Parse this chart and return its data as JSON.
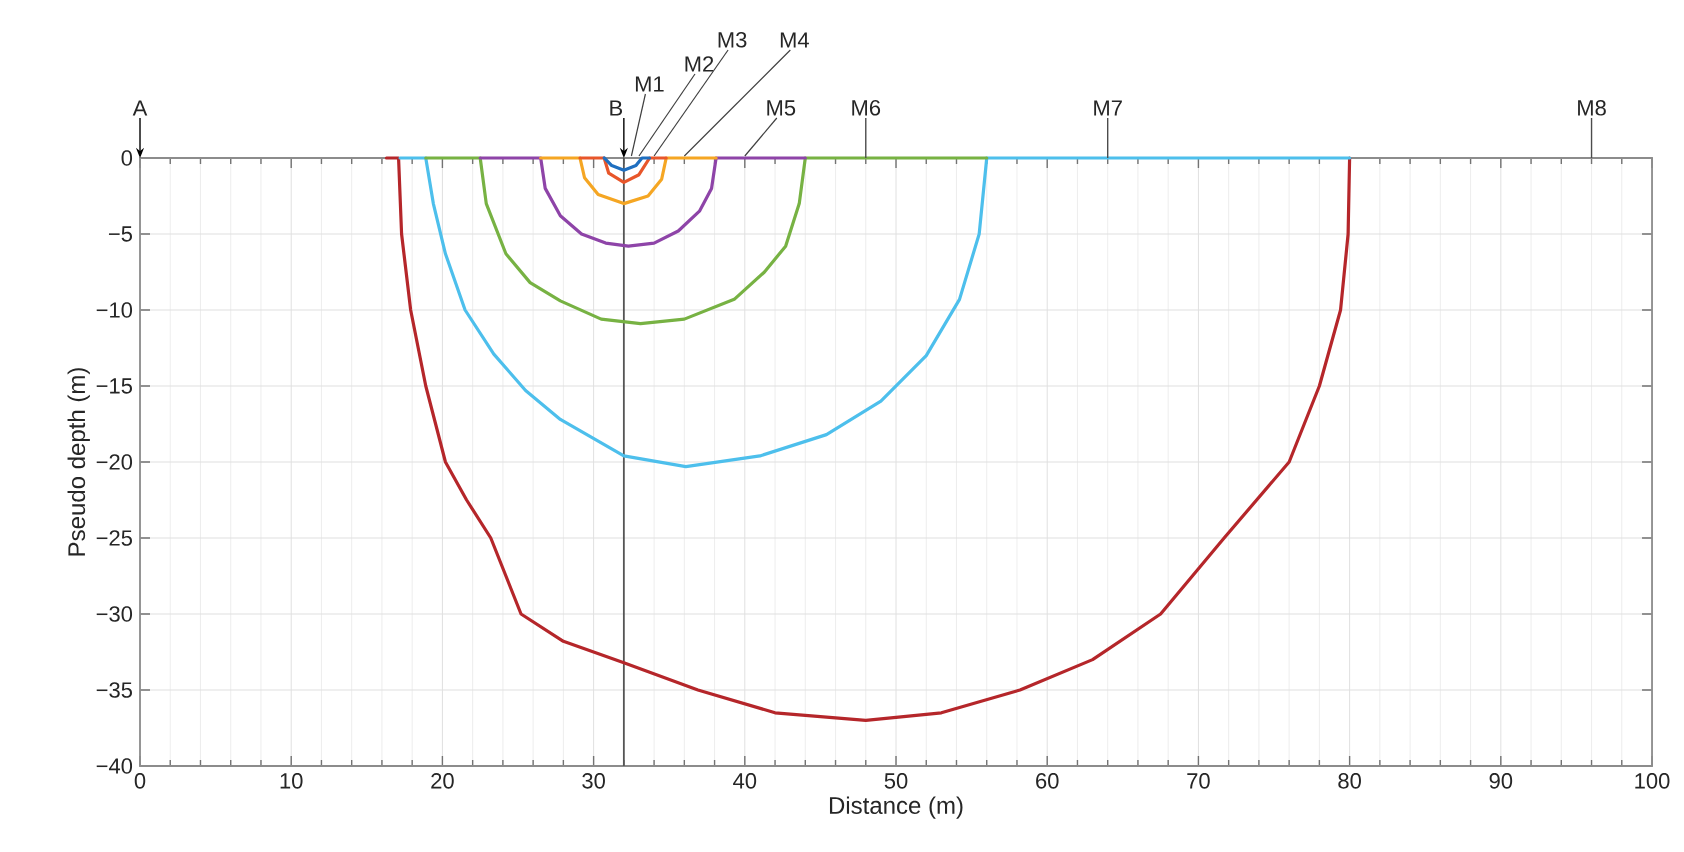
{
  "chart_data": {
    "type": "line",
    "xlabel": "Distance (m)",
    "ylabel": "Pseudo depth (m)",
    "xlim": [
      0,
      100
    ],
    "ylim": [
      -40,
      0
    ],
    "xticks": [
      0,
      10,
      20,
      30,
      40,
      50,
      60,
      70,
      80,
      90,
      100
    ],
    "yticks": [
      {
        "value": 0,
        "label": "0"
      },
      {
        "value": -5,
        "label": "−5"
      },
      {
        "value": -10,
        "label": "−10"
      },
      {
        "value": -15,
        "label": "−15"
      },
      {
        "value": -20,
        "label": "−20"
      },
      {
        "value": -25,
        "label": "−25"
      },
      {
        "value": -30,
        "label": "−30"
      },
      {
        "value": -35,
        "label": "−35"
      },
      {
        "value": -40,
        "label": "−40"
      }
    ],
    "grid": true,
    "marker": "none",
    "line_style": "solid",
    "ref_lines": [
      {
        "axis": "x",
        "value": 32,
        "color": "#555555"
      }
    ],
    "annotations": [
      "A",
      {
        "text": "B",
        "x": 32,
        "y": 0
      },
      {
        "text": "M1",
        "x": 32.5,
        "y": 0
      },
      {
        "text": "M2",
        "x": 33,
        "y": 0
      },
      {
        "text": "M3",
        "x": 34,
        "y": 0
      },
      {
        "text": "M4",
        "x": 36,
        "y": 0
      },
      {
        "text": "M5",
        "x": 40,
        "y": 0
      },
      {
        "text": "M6",
        "x": 48,
        "y": 0
      },
      {
        "text": "M7",
        "x": 64,
        "y": 0
      },
      "M8"
    ],
    "series": [
      {
        "color": "#b5262a",
        "x": [
          16.3,
          17.1,
          17.3,
          17.9,
          18.9,
          20.2,
          21.6,
          23.2,
          25.2,
          28,
          32,
          36.9,
          42,
          48,
          53,
          58.2,
          63,
          67.5,
          71.7,
          76,
          78,
          79.4,
          79.9,
          80
        ],
        "values": [
          0,
          0,
          -5,
          -10,
          -15,
          -20,
          -22.5,
          -25,
          -30,
          -31.8,
          -33.2,
          -35,
          -36.5,
          -37,
          -36.5,
          -35,
          -33,
          -30,
          -25,
          -20,
          -15,
          -10,
          -5,
          0
        ]
      },
      {
        "color": "#4dbfec",
        "x": [
          17.2,
          18.9,
          19.4,
          20.2,
          21.5,
          23.4,
          25.5,
          27.8,
          32,
          36.1,
          41,
          45.4,
          49,
          52,
          54.2,
          55.5,
          56,
          80
        ],
        "values": [
          0,
          0,
          -3,
          -6.3,
          -10,
          -12.9,
          -15.3,
          -17.2,
          -19.6,
          -20.3,
          -19.6,
          -18.2,
          -16,
          -13,
          -9.3,
          -5,
          0,
          0
        ]
      },
      {
        "color": "#77b243",
        "x": [
          18.9,
          22.5,
          22.9,
          24.2,
          25.8,
          27.8,
          30.5,
          33.1,
          36,
          39.3,
          41.3,
          42.7,
          43.6,
          44,
          56
        ],
        "values": [
          0,
          0,
          -3,
          -6.3,
          -8.2,
          -9.4,
          -10.6,
          -10.9,
          -10.6,
          -9.3,
          -7.5,
          -5.8,
          -3,
          0,
          0
        ]
      },
      {
        "color": "#8e44a8",
        "x": [
          22.5,
          26.5,
          26.8,
          27.8,
          29.2,
          30.8,
          32.3,
          34,
          35.6,
          37,
          37.8,
          38.1,
          44
        ],
        "values": [
          0,
          0,
          -2,
          -3.8,
          -5,
          -5.6,
          -5.8,
          -5.6,
          -4.8,
          -3.5,
          -2,
          0,
          0
        ]
      },
      {
        "color": "#f5a623",
        "x": [
          26.5,
          29.1,
          29.4,
          30.3,
          32,
          33.6,
          34.5,
          34.8,
          38.1
        ],
        "values": [
          0,
          0,
          -1.3,
          -2.4,
          -3,
          -2.5,
          -1.4,
          0,
          0
        ]
      },
      {
        "color": "#e8562a",
        "x": [
          29.1,
          30.7,
          31,
          32,
          33,
          33.7,
          34.8
        ],
        "values": [
          0,
          0,
          -1,
          -1.6,
          -1.1,
          0,
          0
        ]
      },
      {
        "color": "#1f6fc0",
        "x": [
          30.7,
          31.2,
          32,
          32.8,
          33.2,
          33.7
        ],
        "values": [
          0,
          -0.5,
          -0.8,
          -0.5,
          0,
          0
        ]
      }
    ]
  }
}
